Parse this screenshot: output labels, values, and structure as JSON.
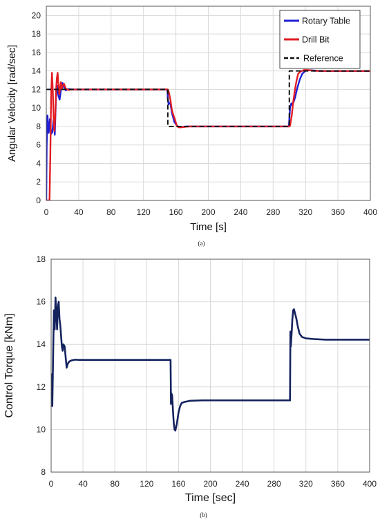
{
  "chart_data": [
    {
      "type": "line",
      "caption": "(a)",
      "xlabel": "Time [s]",
      "ylabel": "Angular Velocity [rad/sec]",
      "xlim": [
        0,
        400
      ],
      "ylim": [
        0,
        21
      ],
      "xticks": [
        0,
        40,
        80,
        120,
        160,
        200,
        240,
        280,
        320,
        360,
        400
      ],
      "yticks": [
        0,
        2,
        4,
        6,
        8,
        10,
        12,
        14,
        16,
        18,
        20
      ],
      "grid": true,
      "legend_position": "top-right",
      "series": [
        {
          "name": "Rotary Table",
          "color": "#1f1fd6",
          "style": "solid",
          "points": [
            [
              0,
              0
            ],
            [
              0.5,
              6
            ],
            [
              1.5,
              9.2
            ],
            [
              3,
              7.3
            ],
            [
              4.5,
              8.8
            ],
            [
              6,
              7.2
            ],
            [
              7.5,
              7.4
            ],
            [
              9,
              8.8
            ],
            [
              10.5,
              7.1
            ],
            [
              12,
              11.2
            ],
            [
              13.5,
              12.4
            ],
            [
              15,
              11.3
            ],
            [
              16.5,
              10.9
            ],
            [
              18,
              11.9
            ],
            [
              20,
              12.7
            ],
            [
              22,
              12.2
            ],
            [
              24,
              11.9
            ],
            [
              27,
              12.05
            ],
            [
              32,
              12
            ],
            [
              40,
              12
            ],
            [
              149.5,
              12
            ],
            [
              150,
              11
            ],
            [
              151,
              10.4
            ],
            [
              153,
              10.6
            ],
            [
              155,
              9.5
            ],
            [
              158,
              8.5
            ],
            [
              161,
              8.1
            ],
            [
              164,
              7.95
            ],
            [
              168,
              7.95
            ],
            [
              172,
              8
            ],
            [
              180,
              8
            ],
            [
              299.5,
              8
            ],
            [
              300,
              8.8
            ],
            [
              301,
              10.1
            ],
            [
              302.5,
              10.5
            ],
            [
              304,
              10.3
            ],
            [
              307,
              11.1
            ],
            [
              310,
              12.2
            ],
            [
              313,
              13.1
            ],
            [
              316,
              13.7
            ],
            [
              320,
              14.02
            ],
            [
              326,
              14.08
            ],
            [
              335,
              14.02
            ],
            [
              345,
              14
            ],
            [
              400,
              14
            ]
          ]
        },
        {
          "name": "Drill Bit",
          "color": "#e21c24",
          "style": "solid",
          "points": [
            [
              0,
              0
            ],
            [
              2,
              0
            ],
            [
              4,
              0
            ],
            [
              5,
              5
            ],
            [
              6,
              11.5
            ],
            [
              7,
              13.8
            ],
            [
              8,
              12
            ],
            [
              9,
              9
            ],
            [
              10,
              7.5
            ],
            [
              11,
              9
            ],
            [
              12,
              11.8
            ],
            [
              13,
              13.2
            ],
            [
              14,
              13.8
            ],
            [
              15,
              12.5
            ],
            [
              16,
              11.5
            ],
            [
              17,
              12.2
            ],
            [
              18,
              12.8
            ],
            [
              19,
              12
            ],
            [
              20,
              12.4
            ],
            [
              22,
              12.6
            ],
            [
              24,
              12.1
            ],
            [
              27,
              11.95
            ],
            [
              32,
              12
            ],
            [
              40,
              12
            ],
            [
              150,
              12
            ],
            [
              151,
              11.8
            ],
            [
              153,
              11
            ],
            [
              155,
              9.8
            ],
            [
              157,
              9.2
            ],
            [
              159,
              8.7
            ],
            [
              161,
              8.1
            ],
            [
              163,
              7.92
            ],
            [
              166,
              7.9
            ],
            [
              170,
              7.95
            ],
            [
              176,
              8
            ],
            [
              180,
              8
            ],
            [
              300,
              8
            ],
            [
              301,
              8.1
            ],
            [
              303,
              9.2
            ],
            [
              305,
              10.8
            ],
            [
              307,
              12
            ],
            [
              309,
              13
            ],
            [
              311,
              13.7
            ],
            [
              314,
              13.95
            ],
            [
              318,
              14.1
            ],
            [
              323,
              14.1
            ],
            [
              330,
              14.02
            ],
            [
              340,
              14
            ],
            [
              400,
              14
            ]
          ]
        },
        {
          "name": "Reference",
          "color": "#111111",
          "style": "dashed",
          "points": [
            [
              0,
              12
            ],
            [
              150,
              12
            ],
            [
              150,
              8
            ],
            [
              300,
              8
            ],
            [
              300,
              14
            ],
            [
              400,
              14
            ]
          ]
        }
      ]
    },
    {
      "type": "line",
      "caption": "(b)",
      "xlabel": "Time [sec]",
      "ylabel": "Control Torque [kNm]",
      "xlim": [
        0,
        400
      ],
      "ylim": [
        8,
        18
      ],
      "xticks": [
        0,
        40,
        80,
        120,
        160,
        200,
        240,
        280,
        320,
        360,
        400
      ],
      "yticks": [
        8,
        10,
        12,
        14,
        16,
        18
      ],
      "grid": true,
      "series": [
        {
          "color": "#14235e",
          "style": "solid",
          "points": [
            [
              0,
              12.6
            ],
            [
              0.6,
              11.2
            ],
            [
              1.5,
              11.1
            ],
            [
              2.5,
              13.5
            ],
            [
              3.5,
              15.6
            ],
            [
              4.5,
              14.7
            ],
            [
              5.5,
              16.2
            ],
            [
              6.5,
              15.5
            ],
            [
              7.5,
              14.7
            ],
            [
              8.5,
              15.8
            ],
            [
              9.5,
              16
            ],
            [
              10.5,
              15.2
            ],
            [
              11.5,
              14.9
            ],
            [
              12.5,
              14.4
            ],
            [
              13.5,
              13.9
            ],
            [
              14.5,
              13.7
            ],
            [
              15.5,
              14
            ],
            [
              17,
              13.9
            ],
            [
              18.5,
              13.3
            ],
            [
              19.5,
              12.9
            ],
            [
              21,
              13.1
            ],
            [
              23,
              13.2
            ],
            [
              26,
              13.25
            ],
            [
              30,
              13.28
            ],
            [
              35,
              13.27
            ],
            [
              40,
              13.27
            ],
            [
              150,
              13.27
            ],
            [
              150.5,
              11.2
            ],
            [
              151,
              11.7
            ],
            [
              152,
              11.6
            ],
            [
              153,
              10.9
            ],
            [
              154,
              10.3
            ],
            [
              155,
              10
            ],
            [
              156,
              9.95
            ],
            [
              158,
              10.3
            ],
            [
              160,
              10.8
            ],
            [
              162,
              11.1
            ],
            [
              164,
              11.25
            ],
            [
              168,
              11.3
            ],
            [
              175,
              11.35
            ],
            [
              190,
              11.37
            ],
            [
              300,
              11.37
            ],
            [
              300.5,
              14.6
            ],
            [
              301,
              13.9
            ],
            [
              302,
              14.5
            ],
            [
              303,
              15.2
            ],
            [
              304,
              15.6
            ],
            [
              305,
              15.65
            ],
            [
              306,
              15.5
            ],
            [
              308,
              15.2
            ],
            [
              310,
              14.8
            ],
            [
              312,
              14.5
            ],
            [
              315,
              14.35
            ],
            [
              320,
              14.28
            ],
            [
              330,
              14.25
            ],
            [
              345,
              14.22
            ],
            [
              360,
              14.22
            ],
            [
              400,
              14.22
            ]
          ]
        }
      ]
    }
  ]
}
